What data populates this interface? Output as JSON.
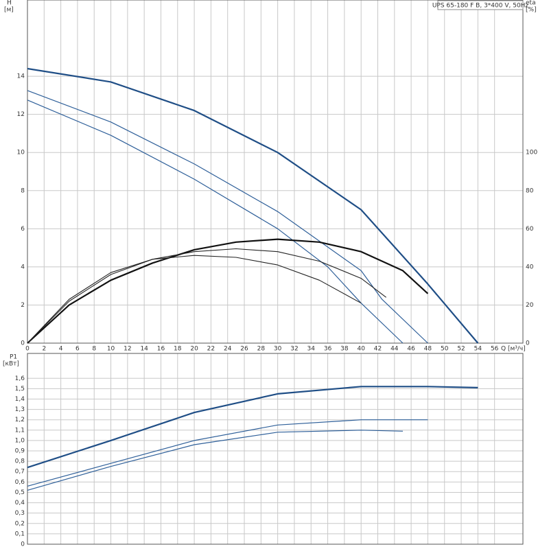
{
  "chart_data": [
    {
      "type": "line",
      "title": "UPS 65-180 F B, 3*400 V, 50Hz",
      "ylabel": "H",
      "yunit": "[м]",
      "y2label": "eta",
      "y2unit": "[%]",
      "xlabel": "Q [м³/ч]",
      "xlim": [
        0,
        59.4
      ],
      "xticks": [
        0,
        2,
        4,
        6,
        8,
        10,
        12,
        14,
        16,
        18,
        20,
        22,
        24,
        26,
        28,
        30,
        32,
        34,
        36,
        38,
        40,
        42,
        44,
        46,
        48,
        50,
        52,
        54,
        56
      ],
      "ylim": [
        0,
        18
      ],
      "yticks": [
        0,
        2,
        4,
        6,
        8,
        10,
        12,
        14
      ],
      "y2lim": [
        0,
        180
      ],
      "y2ticks": [
        0,
        20,
        40,
        60,
        80,
        100
      ],
      "grid": true,
      "series": [
        {
          "color": "#1f4e86",
          "width": 2.2,
          "x": [
            0,
            10,
            20,
            30,
            40,
            48,
            54
          ],
          "values": [
            14.4,
            13.7,
            12.2,
            10,
            7,
            3.1,
            0
          ]
        },
        {
          "color": "#2e5f99",
          "width": 1.2,
          "x": [
            0,
            10,
            20,
            30,
            40,
            42.5,
            48
          ],
          "values": [
            13.25,
            11.6,
            9.4,
            6.9,
            3.8,
            2.3,
            0
          ]
        },
        {
          "color": "#2e5f99",
          "width": 1.2,
          "x": [
            0,
            10,
            20,
            30,
            36,
            40,
            45
          ],
          "values": [
            12.75,
            10.9,
            8.6,
            6,
            4,
            2.1,
            0
          ]
        },
        {
          "color": "#111111",
          "width": 2.2,
          "axis": "y2",
          "x": [
            0,
            5,
            10,
            15,
            20,
            25,
            30,
            35,
            40,
            45,
            48
          ],
          "values": [
            0,
            20,
            33,
            42,
            49,
            53,
            54.5,
            53,
            48,
            38,
            26
          ]
        },
        {
          "color": "#222222",
          "width": 1.1,
          "axis": "y2",
          "x": [
            0,
            5,
            10,
            15,
            20,
            25,
            30,
            35,
            40,
            43
          ],
          "values": [
            0,
            22,
            36,
            44,
            48,
            49.5,
            48,
            43,
            34,
            24
          ]
        },
        {
          "color": "#222222",
          "width": 1.1,
          "axis": "y2",
          "x": [
            0,
            5,
            10,
            15,
            20,
            25,
            30,
            35,
            40
          ],
          "values": [
            0,
            23,
            37,
            44,
            46,
            45,
            41,
            33,
            21
          ]
        }
      ]
    },
    {
      "type": "line",
      "ylabel": "P1",
      "yunit": "[кВт]",
      "xlim": [
        0,
        59.4
      ],
      "xticks": [
        0,
        2,
        4,
        6,
        8,
        10,
        12,
        14,
        16,
        18,
        20,
        22,
        24,
        26,
        28,
        30,
        32,
        34,
        36,
        38,
        40,
        42,
        44,
        46,
        48,
        50,
        52,
        54,
        56
      ],
      "ylim": [
        0,
        1.84
      ],
      "yticks": [
        0,
        {
          "value": 0.1,
          "label": "0,1"
        },
        {
          "value": 0.2,
          "label": "0,2"
        },
        {
          "value": 0.3,
          "label": "0,3"
        },
        {
          "value": 0.4,
          "label": "0,4"
        },
        {
          "value": 0.5,
          "label": "0,5"
        },
        {
          "value": 0.6,
          "label": "0,6"
        },
        {
          "value": 0.7,
          "label": "0,7"
        },
        {
          "value": 0.8,
          "label": "0,8"
        },
        {
          "value": 0.9,
          "label": "0,9"
        },
        {
          "value": 1.0,
          "label": "1,0"
        },
        {
          "value": 1.1,
          "label": "1,1"
        },
        {
          "value": 1.2,
          "label": "1,2"
        },
        {
          "value": 1.3,
          "label": "1,3"
        },
        {
          "value": 1.4,
          "label": "1,4"
        },
        {
          "value": 1.5,
          "label": "1,5"
        },
        {
          "value": 1.6,
          "label": "1,6"
        }
      ],
      "grid": true,
      "series": [
        {
          "color": "#1f4e86",
          "width": 2.2,
          "x": [
            0,
            10,
            20,
            30,
            40,
            48,
            54
          ],
          "values": [
            0.74,
            1.0,
            1.27,
            1.45,
            1.52,
            1.52,
            1.51
          ]
        },
        {
          "color": "#2e5f99",
          "width": 1.2,
          "x": [
            0,
            10,
            20,
            30,
            40,
            48
          ],
          "values": [
            0.56,
            0.78,
            1.0,
            1.15,
            1.2,
            1.2
          ]
        },
        {
          "color": "#2e5f99",
          "width": 1.2,
          "x": [
            0,
            10,
            20,
            30,
            40,
            45
          ],
          "values": [
            0.52,
            0.75,
            0.96,
            1.08,
            1.1,
            1.09
          ]
        }
      ]
    }
  ]
}
